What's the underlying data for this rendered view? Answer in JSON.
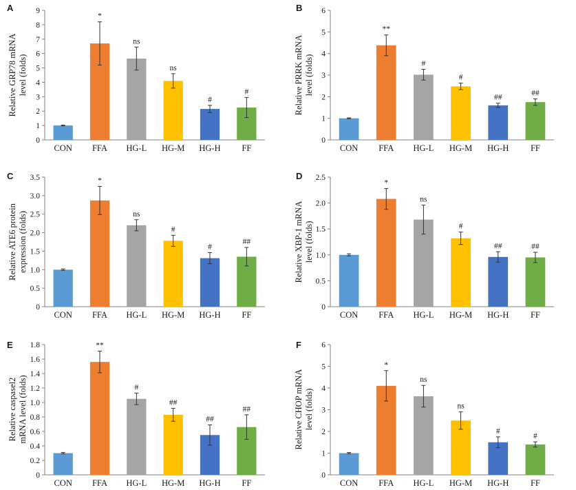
{
  "colors": {
    "CON": "#5b9bd5",
    "FFA": "#ed7d31",
    "HG-L": "#a5a5a5",
    "HG-M": "#ffc000",
    "HG-H": "#4472c4",
    "FF": "#70ad47",
    "axis": "#808080",
    "error": "#333333"
  },
  "chart_data": [
    {
      "panel": "A",
      "type": "bar",
      "ylabel_lines": [
        "Relative GRP78 mRNA",
        "level (folds)"
      ],
      "categories": [
        "CON",
        "FFA",
        "HG-L",
        "HG-M",
        "HG-H",
        "FF"
      ],
      "values": [
        1.0,
        6.7,
        5.65,
        4.1,
        2.15,
        2.25
      ],
      "errors": [
        0.03,
        1.5,
        0.8,
        0.5,
        0.25,
        0.7
      ],
      "annotations": [
        "",
        "*",
        "ns",
        "ns",
        "#",
        "#"
      ],
      "ylim": [
        0,
        9
      ],
      "yticks": [
        0,
        1,
        2,
        3,
        4,
        5,
        6,
        7,
        8,
        9
      ],
      "grid": false
    },
    {
      "panel": "B",
      "type": "bar",
      "ylabel_lines": [
        "Relative PRRK mRNA",
        "level (folds)"
      ],
      "categories": [
        "CON",
        "FFA",
        "HG-L",
        "HG-M",
        "HG-H",
        "FF"
      ],
      "values": [
        1.0,
        4.38,
        3.02,
        2.48,
        1.6,
        1.75
      ],
      "errors": [
        0.02,
        0.48,
        0.25,
        0.15,
        0.1,
        0.15
      ],
      "annotations": [
        "",
        "**",
        "#",
        "#",
        "##",
        "##"
      ],
      "ylim": [
        0,
        6
      ],
      "yticks": [
        0,
        1,
        2,
        3,
        4,
        5,
        6
      ],
      "grid": false
    },
    {
      "panel": "C",
      "type": "bar",
      "ylabel_lines": [
        "Relative ATE6 protein",
        "expression (folds)"
      ],
      "categories": [
        "CON",
        "FFA",
        "HG-L",
        "HG-M",
        "HG-H",
        "FF"
      ],
      "values": [
        1.0,
        2.87,
        2.2,
        1.78,
        1.31,
        1.35
      ],
      "errors": [
        0.02,
        0.38,
        0.15,
        0.15,
        0.15,
        0.25
      ],
      "annotations": [
        "",
        "*",
        "ns",
        "#",
        "#",
        "##"
      ],
      "ylim": [
        0,
        3.5
      ],
      "yticks": [
        "0",
        "0.5",
        "1.0",
        "1.5",
        "2.0",
        "2.5",
        "3.0",
        "3.5"
      ],
      "grid": false
    },
    {
      "panel": "D",
      "type": "bar",
      "ylabel_lines": [
        "Relative XBP-1 mRNA",
        "level (folds)"
      ],
      "categories": [
        "CON",
        "FFA",
        "HG-L",
        "HG-M",
        "HG-H",
        "FF"
      ],
      "values": [
        1.0,
        2.08,
        1.68,
        1.32,
        0.96,
        0.95
      ],
      "errors": [
        0.02,
        0.2,
        0.28,
        0.12,
        0.1,
        0.1
      ],
      "annotations": [
        "",
        "*",
        "ns",
        "#",
        "##",
        "##"
      ],
      "ylim": [
        0,
        2.5
      ],
      "yticks": [
        "0",
        "0.5",
        "1.0",
        "1.5",
        "2.0",
        "2.5"
      ],
      "grid": false
    },
    {
      "panel": "E",
      "type": "bar",
      "ylabel_lines": [
        "Relative caspasel2",
        "mRNA level (folds)"
      ],
      "categories": [
        "CON",
        "FFA",
        "HG-L",
        "HG-M",
        "HG-H",
        "FF"
      ],
      "values": [
        0.3,
        1.56,
        1.05,
        0.83,
        0.55,
        0.66
      ],
      "errors": [
        0.01,
        0.15,
        0.08,
        0.09,
        0.14,
        0.17
      ],
      "annotations": [
        "",
        "**",
        "#",
        "##",
        "##",
        "##"
      ],
      "ylim": [
        0,
        1.8
      ],
      "yticks": [
        "0",
        "0.2",
        "0.4",
        "0.6",
        "0.8",
        "1.0",
        "1.2",
        "1.4",
        "1.6",
        "1.8"
      ],
      "grid": false
    },
    {
      "panel": "F",
      "type": "bar",
      "ylabel_lines": [
        "Relative CHOP mRNA",
        "level (folds)"
      ],
      "categories": [
        "CON",
        "FFA",
        "HG-L",
        "HG-M",
        "HG-H",
        "FF"
      ],
      "values": [
        1.0,
        4.1,
        3.62,
        2.5,
        1.5,
        1.4
      ],
      "errors": [
        0.03,
        0.7,
        0.5,
        0.4,
        0.25,
        0.12
      ],
      "annotations": [
        "",
        "*",
        "ns",
        "ns",
        "#",
        "#"
      ],
      "ylim": [
        0,
        6
      ],
      "yticks": [
        0,
        1,
        2,
        3,
        4,
        5,
        6
      ],
      "grid": false
    }
  ]
}
